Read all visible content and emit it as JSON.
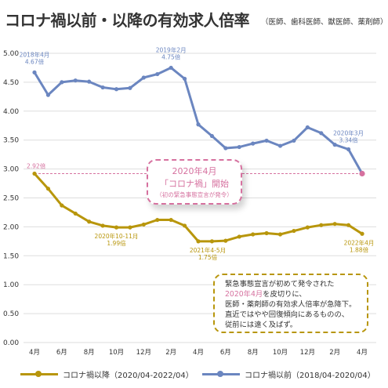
{
  "title": "コロナ禍以前・以降の有効求人倍率",
  "subtitle": "（医師、歯科医師、獣医師、薬剤師）",
  "colors": {
    "before": "#6b86c0",
    "after": "#b8960c",
    "highlight": "#d6719f",
    "grid": "#dddddd"
  },
  "chart_data": {
    "type": "line",
    "ylim": [
      0,
      5
    ],
    "y_ticks": [
      "0.00",
      "0.50",
      "1.00",
      "1.50",
      "2.00",
      "2.50",
      "3.00",
      "3.50",
      "4.00",
      "4.50",
      "5.00"
    ],
    "x_tick_labels": [
      "4月",
      "6月",
      "8月",
      "10月",
      "12月",
      "2月",
      "4月",
      "6月",
      "8月",
      "10月",
      "12月",
      "2月",
      "4月"
    ],
    "series": [
      {
        "name": "コロナ禍以前（2018/04-2020/04）",
        "color": "#6b86c0",
        "values": [
          4.67,
          4.28,
          4.5,
          4.53,
          4.51,
          4.41,
          4.38,
          4.4,
          4.58,
          4.64,
          4.75,
          4.56,
          3.77,
          3.57,
          3.36,
          3.38,
          3.44,
          3.49,
          3.4,
          3.49,
          3.72,
          3.62,
          3.42,
          3.34,
          2.92
        ]
      },
      {
        "name": "コロナ禍以降（2020/04-2022/04）",
        "color": "#b8960c",
        "values": [
          2.92,
          2.66,
          2.37,
          2.23,
          2.09,
          2.02,
          1.99,
          1.99,
          2.04,
          2.12,
          2.12,
          2.02,
          1.75,
          1.75,
          1.76,
          1.83,
          1.87,
          1.89,
          1.87,
          1.93,
          1.99,
          2.03,
          2.05,
          2.03,
          1.88
        ]
      }
    ],
    "annotations": [
      {
        "series": 0,
        "index": 0,
        "line1": "2018年4月",
        "line2": "4.67倍",
        "dx": 0,
        "dy": -20,
        "anchor": "middle"
      },
      {
        "series": 0,
        "index": 10,
        "line1": "2019年2月",
        "line2": "4.75倍",
        "dx": 0,
        "dy": -20,
        "anchor": "middle"
      },
      {
        "series": 0,
        "index": 23,
        "line1": "2020年3月",
        "line2": "3.34倍",
        "dx": 0,
        "dy": -18,
        "anchor": "middle"
      },
      {
        "series": 1,
        "index": 0,
        "line1": "2.92倍",
        "line2": "",
        "dx": -10,
        "dy": -7,
        "anchor": "start",
        "pink": true
      },
      {
        "series": 1,
        "index": 6,
        "line1": "2020年10-11月",
        "line2": "1.99倍",
        "dx": 0,
        "dy": 14,
        "anchor": "middle"
      },
      {
        "series": 1,
        "index": 12,
        "line1": "2021年4-5月",
        "line2": "1.75倍",
        "dx": 12,
        "dy": 14,
        "anchor": "middle"
      },
      {
        "series": 1,
        "index": 24,
        "line1": "2022年4月",
        "line2": "1.88倍",
        "dx": -4,
        "dy": 14,
        "anchor": "middle"
      }
    ]
  },
  "callout_pink": {
    "line1": "2020年4月",
    "line2": "「コロナ禍」開始",
    "line3": "（初の緊急事態宣言が発令）"
  },
  "callout_gold": {
    "line1": "緊急事態宣言が初めて発令された",
    "line2_hl": "2020年4月",
    "line2_rest": "を皮切りに、",
    "line3": "医師・薬剤師の有効求人倍率が急降下。",
    "line4": "直近ではやや回復傾向にあるものの、",
    "line5": "従前には遠く及ばず。"
  },
  "legend": {
    "after": "コロナ禍以降（2020/04-2022/04）",
    "before": "コロナ禍以前（2018/04-2020/04）"
  }
}
